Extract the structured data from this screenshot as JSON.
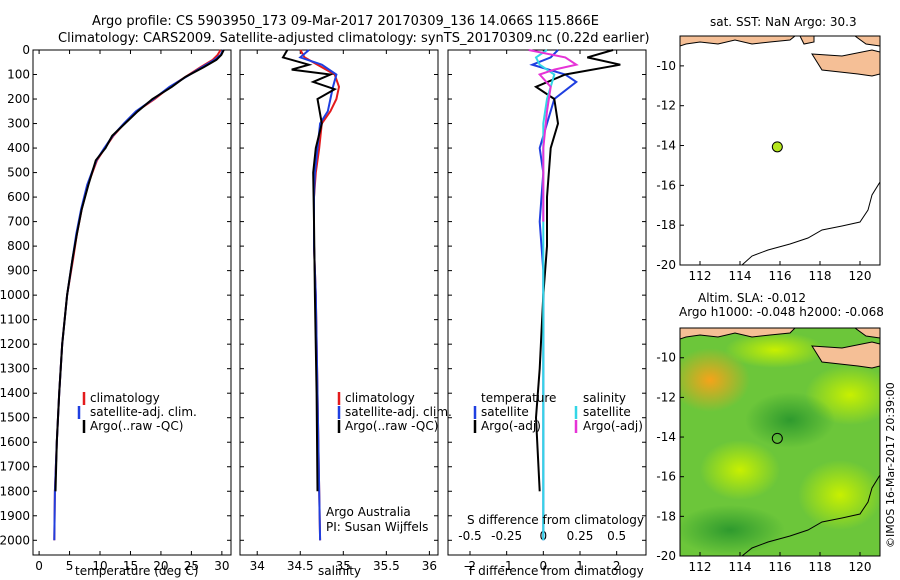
{
  "header": {
    "line1": "Argo profile: CS 5903950_173 09-Mar-2017 20170309_136 14.066S 115.866E",
    "line2": "Climatology: CARS2009. Satellite-adjusted climatology: synTS_20170309.nc (0.22d earlier)"
  },
  "sst_title": "sat. SST: NaN Argo: 30.3",
  "sla_title1": "Altim. SLA: -0.012",
  "sla_title2": "Argo h1000: -0.048 h2000: -0.068",
  "credit": "©IMOS 16-Mar-2017 20:39:00",
  "colors": {
    "climatology": "#e31a1c",
    "satellite": "#1f3fe0",
    "argo": "#000000",
    "salinity_sat": "#33d6e6",
    "salinity_argo": "#e633d6",
    "land": "#f5bf96",
    "float_marker": "#b5e61d"
  },
  "chart_data": [
    {
      "type": "line",
      "name": "temperature",
      "xlabel": "temperature (deg C)",
      "ylabel": "",
      "xlim": [
        -1,
        31.5
      ],
      "ylim": [
        2060,
        0
      ],
      "xticks": [
        0,
        5,
        10,
        15,
        20,
        25,
        30
      ],
      "yticks": [
        0,
        100,
        200,
        300,
        400,
        500,
        600,
        700,
        800,
        900,
        1000,
        1100,
        1200,
        1300,
        1400,
        1500,
        1600,
        1700,
        1800,
        1900,
        2000
      ],
      "legend": [
        "climatology",
        "satellite-adj. clim.",
        "Argo(..raw -QC)"
      ],
      "series": [
        {
          "name": "climatology",
          "color": "red",
          "x": [
            29.8,
            29.3,
            28.5,
            26.5,
            24.0,
            21.5,
            19.0,
            16.0,
            14.0,
            12.2,
            10.8,
            9.5,
            8.0,
            7.0,
            6.2,
            5.6,
            4.6,
            3.8,
            3.3,
            2.9,
            2.6,
            2.5
          ],
          "y": [
            0,
            20,
            40,
            70,
            110,
            150,
            200,
            250,
            300,
            350,
            400,
            450,
            550,
            650,
            750,
            850,
            1000,
            1200,
            1400,
            1600,
            1800,
            2000
          ]
        },
        {
          "name": "satellite-adj. clim.",
          "color": "blue",
          "x": [
            30.2,
            29.8,
            28.8,
            26.7,
            24.1,
            21.4,
            18.8,
            15.9,
            13.9,
            12.1,
            10.7,
            9.4,
            7.9,
            6.9,
            6.1,
            5.5,
            4.6,
            3.8,
            3.3,
            2.9,
            2.6,
            2.5
          ],
          "y": [
            0,
            20,
            40,
            70,
            110,
            150,
            200,
            250,
            300,
            350,
            400,
            450,
            550,
            650,
            750,
            850,
            1000,
            1200,
            1400,
            1600,
            1800,
            2000
          ]
        },
        {
          "name": "Argo(..raw -QC)",
          "color": "black",
          "x": [
            30.3,
            29.9,
            29.1,
            27.0,
            24.0,
            21.8,
            18.6,
            16.2,
            14.1,
            12.0,
            10.9,
            9.3,
            8.1,
            7.0,
            6.2,
            5.5,
            4.6,
            3.8,
            3.3,
            2.9,
            2.7
          ],
          "y": [
            0,
            20,
            40,
            70,
            110,
            150,
            200,
            250,
            300,
            350,
            400,
            450,
            550,
            650,
            750,
            850,
            1000,
            1200,
            1400,
            1600,
            1800
          ]
        }
      ]
    },
    {
      "type": "line",
      "name": "salinity",
      "xlabel": "salinity",
      "ylabel": "",
      "xlim": [
        33.8,
        36.1
      ],
      "ylim": [
        2060,
        0
      ],
      "xticks": [
        34,
        34.5,
        35,
        35.5,
        36
      ],
      "xticklabels": [
        "34",
        "34.5",
        "35",
        "35.5",
        "36"
      ],
      "legend": [
        "climatology",
        "satellite-adj. clim.",
        "Argo(..raw -QC)"
      ],
      "annotation": [
        "Argo Australia",
        "PI: Susan Wijffels"
      ],
      "series": [
        {
          "name": "climatology",
          "color": "red",
          "x": [
            34.5,
            34.55,
            34.7,
            34.9,
            34.95,
            34.92,
            34.85,
            34.75,
            34.72,
            34.68,
            34.66,
            34.66,
            34.68,
            34.7,
            34.72,
            34.73
          ],
          "y": [
            0,
            30,
            60,
            100,
            150,
            200,
            250,
            300,
            400,
            500,
            600,
            800,
            1000,
            1400,
            1800,
            2000
          ]
        },
        {
          "name": "satellite-adj. clim.",
          "color": "blue",
          "x": [
            34.6,
            34.5,
            34.75,
            34.92,
            34.88,
            34.85,
            34.82,
            34.73,
            34.7,
            34.67,
            34.66,
            34.66,
            34.68,
            34.7,
            34.72,
            34.73
          ],
          "y": [
            0,
            30,
            60,
            100,
            150,
            200,
            250,
            300,
            400,
            500,
            600,
            800,
            1000,
            1400,
            1800,
            2000
          ]
        },
        {
          "name": "Argo(..raw -QC)",
          "color": "black",
          "x": [
            34.35,
            34.3,
            34.6,
            34.4,
            34.85,
            34.65,
            34.9,
            34.7,
            34.75,
            34.68,
            34.65,
            34.66,
            34.67,
            34.69,
            34.7
          ],
          "y": [
            0,
            30,
            60,
            80,
            100,
            130,
            160,
            200,
            300,
            400,
            500,
            700,
            1000,
            1400,
            1800
          ]
        }
      ]
    },
    {
      "type": "line",
      "name": "differences",
      "xlabel": "T difference from climatology",
      "xlabel_top": "S difference from climatology",
      "xlim": [
        -2.6,
        2.8
      ],
      "ylim": [
        2060,
        0
      ],
      "xticks": [
        -2,
        -1,
        0,
        1,
        2
      ],
      "xticks_s": [
        -0.5,
        -0.25,
        0,
        0.25,
        0.5
      ],
      "xticklabels_s": [
        "-0.5",
        "-0.25",
        "0",
        "0.25",
        "0.5"
      ],
      "legend": {
        "temperature": [
          "satellite",
          "Argo(-adj)"
        ],
        "salinity": [
          "satellite",
          "Argo(-adj)"
        ]
      },
      "legend_headers": [
        "temperature",
        "salinity"
      ],
      "series": [
        {
          "name": "temperature satellite",
          "color": "blue",
          "x": [
            0.4,
            0.2,
            -0.3,
            0.6,
            0.9,
            0.3,
            0.1,
            -0.1,
            0.0,
            -0.1,
            0.0,
            0.0,
            0.0,
            0.0
          ],
          "y": [
            0,
            30,
            60,
            100,
            130,
            200,
            300,
            400,
            500,
            700,
            900,
            1200,
            1600,
            2000
          ]
        },
        {
          "name": "temperature Argo(-adj)",
          "color": "black",
          "x": [
            1.9,
            1.2,
            2.1,
            0.6,
            -0.2,
            0.3,
            0.4,
            0.2,
            0.1,
            0.1,
            0.0,
            -0.1,
            -0.2,
            -0.1
          ],
          "y": [
            0,
            30,
            60,
            100,
            150,
            200,
            300,
            400,
            600,
            800,
            1000,
            1300,
            1500,
            1800
          ]
        },
        {
          "name": "salinity satellite",
          "color": "cyan",
          "x": [
            0.1,
            -0.2,
            -0.1,
            0.3,
            0.2,
            0.1,
            0.0,
            0.0,
            0.0,
            0.0,
            0.0,
            0.0
          ],
          "y": [
            0,
            30,
            60,
            100,
            150,
            200,
            300,
            400,
            600,
            1000,
            1500,
            2000
          ]
        },
        {
          "name": "salinity Argo(-adj)",
          "color": "magenta",
          "x": [
            -0.4,
            0.6,
            0.9,
            0.3,
            -0.1,
            0.2,
            0.1,
            0.0,
            0.0
          ],
          "y": [
            0,
            30,
            60,
            80,
            100,
            150,
            250,
            400,
            700
          ]
        }
      ]
    },
    {
      "type": "scatter",
      "name": "sst-map",
      "title": "sat. SST: NaN Argo: 30.3",
      "xlim": [
        111,
        121
      ],
      "ylim": [
        -20,
        -8.5
      ],
      "xticks": [
        112,
        114,
        116,
        118,
        120
      ],
      "yticks": [
        -10,
        -12,
        -14,
        -16,
        -18,
        -20
      ],
      "points": [
        {
          "x": 115.866,
          "y": -14.066
        }
      ]
    },
    {
      "type": "heatmap",
      "name": "sla-map",
      "title": "Altim. SLA: -0.012",
      "subtitle": "Argo h1000: -0.048 h2000: -0.068",
      "xlim": [
        111,
        121
      ],
      "ylim": [
        -20,
        -8.5
      ],
      "xticks": [
        112,
        114,
        116,
        118,
        120
      ],
      "yticks": [
        -10,
        -12,
        -14,
        -16,
        -18,
        -20
      ],
      "points": [
        {
          "x": 115.866,
          "y": -14.066
        }
      ]
    }
  ]
}
